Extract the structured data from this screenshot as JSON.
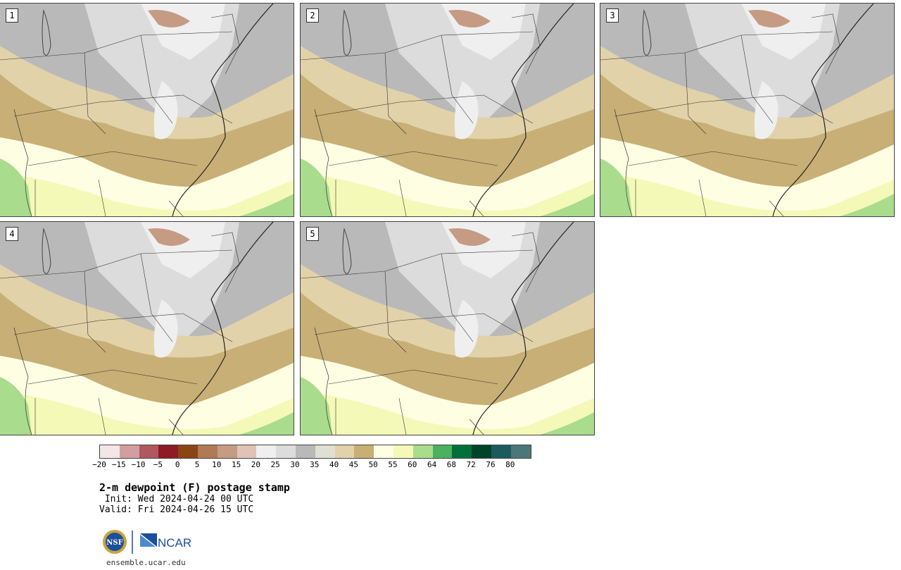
{
  "panels": [
    {
      "label": "1"
    },
    {
      "label": "2"
    },
    {
      "label": "3"
    },
    {
      "label": "4"
    },
    {
      "label": "5"
    }
  ],
  "colorbar": {
    "colors": [
      "#f3e6e6",
      "#d49ea0",
      "#b0585e",
      "#8e1b25",
      "#8b4414",
      "#b07a54",
      "#c59b84",
      "#e0c3b5",
      "#efefef",
      "#dcdcdc",
      "#b9b9b9",
      "#e0dfd3",
      "#e1d2a9",
      "#c8af75",
      "#fefee3",
      "#f4f9b8",
      "#a9dc8d",
      "#4bb05f",
      "#00703a",
      "#00422a",
      "#1d5a5f",
      "#4b777a"
    ],
    "ticks": [
      "−20",
      "−15",
      "−10",
      "−5",
      "0",
      "5",
      "10",
      "15",
      "20",
      "25",
      "30",
      "35",
      "40",
      "45",
      "50",
      "55",
      "60",
      "64",
      "68",
      "72",
      "76",
      "80"
    ]
  },
  "title": "2-m dewpoint (F) postage stamp",
  "init": " Init: Wed 2024-04-24 00 UTC",
  "valid": "Valid: Fri 2024-04-26 15 UTC",
  "logos": {
    "nsf": "NSF",
    "ncar": "NCAR"
  },
  "site": "ensemble.ucar.edu"
}
